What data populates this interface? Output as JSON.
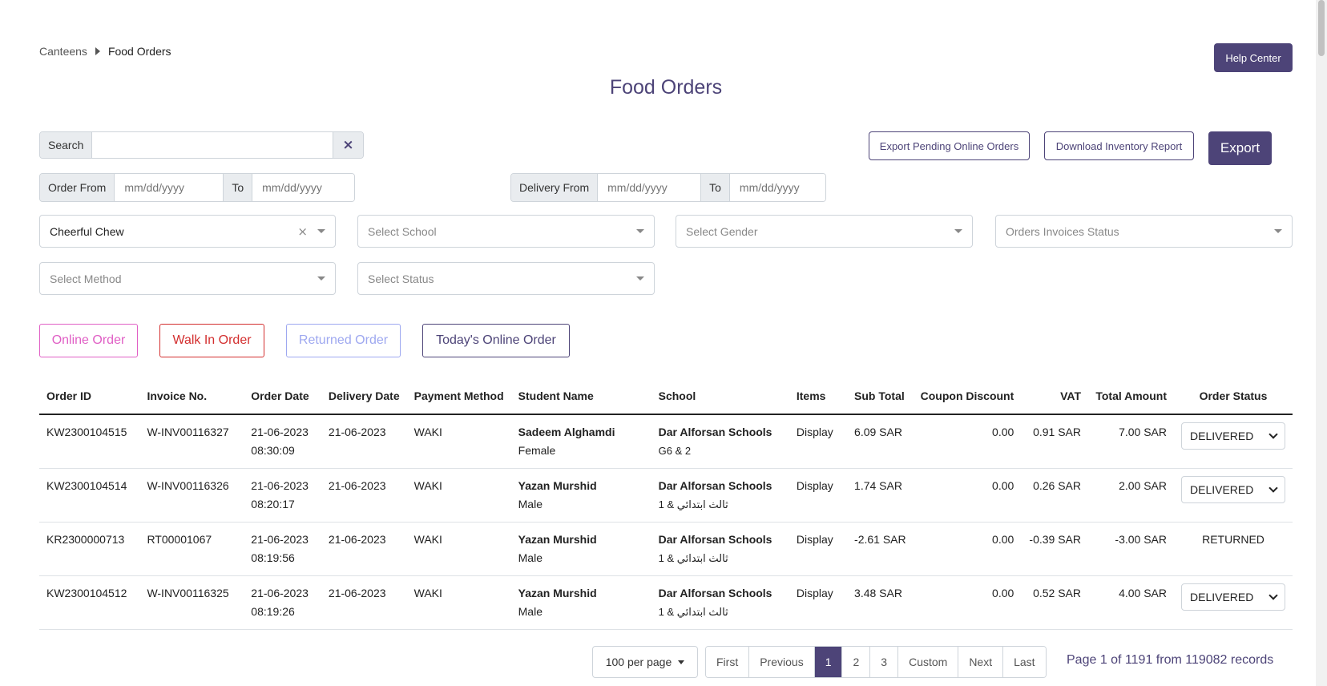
{
  "breadcrumb": {
    "items": [
      "Canteens",
      "Food Orders"
    ]
  },
  "header": {
    "help_label": "Help Center",
    "title": "Food Orders"
  },
  "search": {
    "label": "Search",
    "value": "",
    "placeholder": ""
  },
  "actions": {
    "export_pending_label": "Export Pending Online Orders",
    "download_inventory_label": "Download Inventory Report",
    "export_label": "Export"
  },
  "order_date": {
    "from_label": "Order From",
    "from_placeholder": "mm/dd/yyyy",
    "to_label": "To",
    "to_placeholder": "mm/dd/yyyy"
  },
  "delivery_date": {
    "from_label": "Delivery From",
    "from_placeholder": "mm/dd/yyyy",
    "to_label": "To",
    "to_placeholder": "mm/dd/yyyy"
  },
  "filters": {
    "canteen_value": "Cheerful Chew",
    "clear_glyph": "×",
    "school_placeholder": "Select School",
    "gender_placeholder": "Select Gender",
    "invoice_status_placeholder": "Orders Invoices Status",
    "method_placeholder": "Select Method",
    "status_placeholder": "Select Status"
  },
  "order_types": {
    "online": "Online Order",
    "walkin": "Walk In Order",
    "returned": "Returned Order",
    "today_online": "Today's Online Order"
  },
  "colors": {
    "accent": "#4d4478",
    "online": "#e05fc5",
    "walkin": "#d32f2f",
    "returned": "#9ea8f0"
  },
  "table": {
    "headers": [
      "Order ID",
      "Invoice No.",
      "Order Date",
      "Delivery Date",
      "Payment Method",
      "Student Name",
      "School",
      "Items",
      "Sub Total",
      "Coupon Discount",
      "VAT",
      "Total Amount",
      "Order Status"
    ],
    "rows": [
      {
        "order_id": "KW2300104515",
        "invoice": "W-INV00116327",
        "order_date": "21-06-2023",
        "order_time": "08:30:09",
        "delivery_date": "21-06-2023",
        "payment": "WAKI",
        "student": "Sadeem Alghamdi",
        "gender": "Female",
        "school": "Dar Alforsan Schools",
        "grade": "G6 & 2",
        "items": "Display",
        "sub_total": "6.09 SAR",
        "coupon": "0.00",
        "vat": "0.91 SAR",
        "total": "7.00 SAR",
        "status": "DELIVERED"
      },
      {
        "order_id": "KW2300104514",
        "invoice": "W-INV00116326",
        "order_date": "21-06-2023",
        "order_time": "08:20:17",
        "delivery_date": "21-06-2023",
        "payment": "WAKI",
        "student": "Yazan Murshid",
        "gender": "Male",
        "school": "Dar Alforsan Schools",
        "grade": "ثالث ابتدائي & 1",
        "items": "Display",
        "sub_total": "1.74 SAR",
        "coupon": "0.00",
        "vat": "0.26 SAR",
        "total": "2.00 SAR",
        "status": "DELIVERED"
      },
      {
        "order_id": "KR2300000713",
        "invoice": "RT00001067",
        "order_date": "21-06-2023",
        "order_time": "08:19:56",
        "delivery_date": "21-06-2023",
        "payment": "WAKI",
        "student": "Yazan Murshid",
        "gender": "Male",
        "school": "Dar Alforsan Schools",
        "grade": "ثالث ابتدائي & 1",
        "items": "Display",
        "sub_total": "-2.61 SAR",
        "coupon": "0.00",
        "vat": "-0.39 SAR",
        "total": "-3.00 SAR",
        "status": "RETURNED"
      },
      {
        "order_id": "KW2300104512",
        "invoice": "W-INV00116325",
        "order_date": "21-06-2023",
        "order_time": "08:19:26",
        "delivery_date": "21-06-2023",
        "payment": "WAKI",
        "student": "Yazan Murshid",
        "gender": "Male",
        "school": "Dar Alforsan Schools",
        "grade": "ثالث ابتدائي & 1",
        "items": "Display",
        "sub_total": "3.48 SAR",
        "coupon": "0.00",
        "vat": "0.52 SAR",
        "total": "4.00 SAR",
        "status": "DELIVERED"
      }
    ]
  },
  "pagination": {
    "per_page": "100 per page",
    "first": "First",
    "previous": "Previous",
    "pages": [
      "1",
      "2",
      "3"
    ],
    "custom": "Custom",
    "next": "Next",
    "last": "Last",
    "current_page": 1,
    "records_text": "Page 1 of 1191 from 119082 records"
  }
}
